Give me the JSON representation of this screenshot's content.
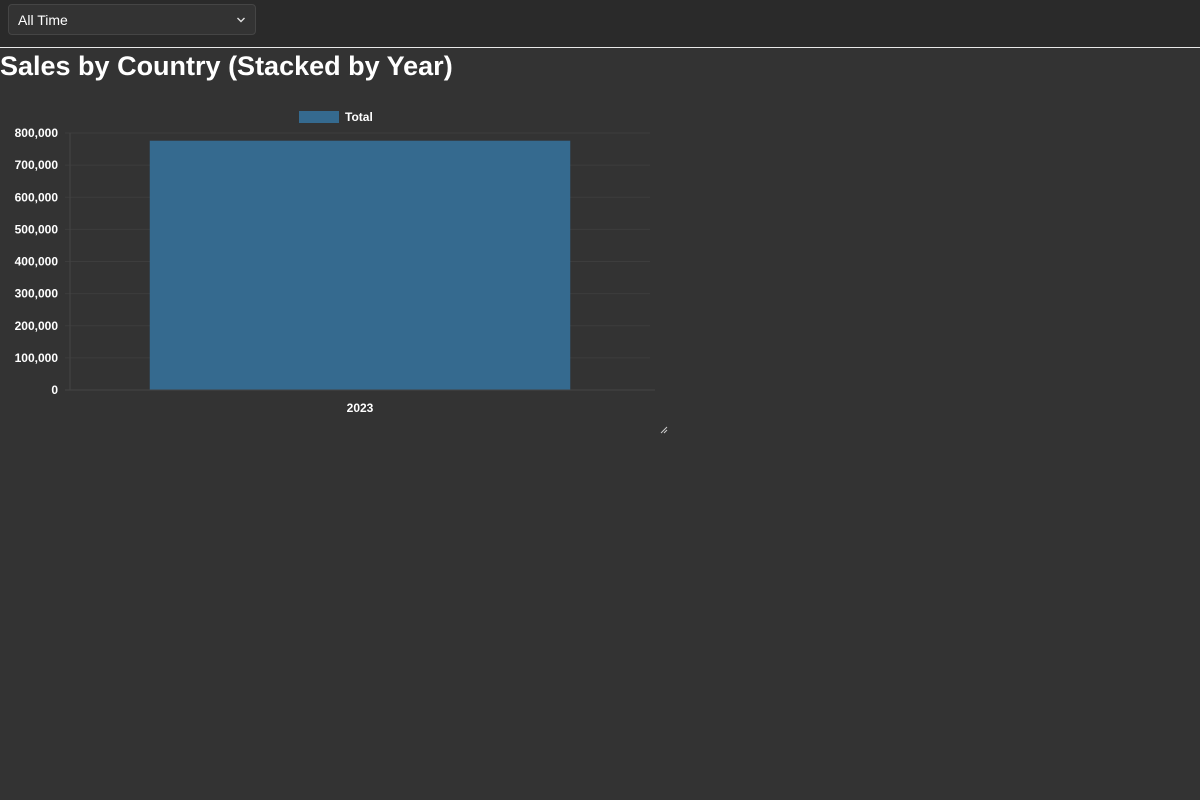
{
  "filter": {
    "selected": "All Time"
  },
  "page": {
    "title": "Sales by Country (Stacked by Year)"
  },
  "chart_data": {
    "type": "bar",
    "stacked": true,
    "categories": [
      "2023"
    ],
    "series": [
      {
        "name": "Total",
        "values": [
          776000
        ],
        "color": "#356a8f"
      }
    ],
    "ylim": [
      0,
      800000
    ],
    "yticks": [
      0,
      100000,
      200000,
      300000,
      400000,
      500000,
      600000,
      700000,
      800000
    ],
    "ytick_labels": [
      "0",
      "100,000",
      "200,000",
      "300,000",
      "400,000",
      "500,000",
      "600,000",
      "700,000",
      "800,000"
    ],
    "grid": true,
    "legend_position": "top"
  }
}
